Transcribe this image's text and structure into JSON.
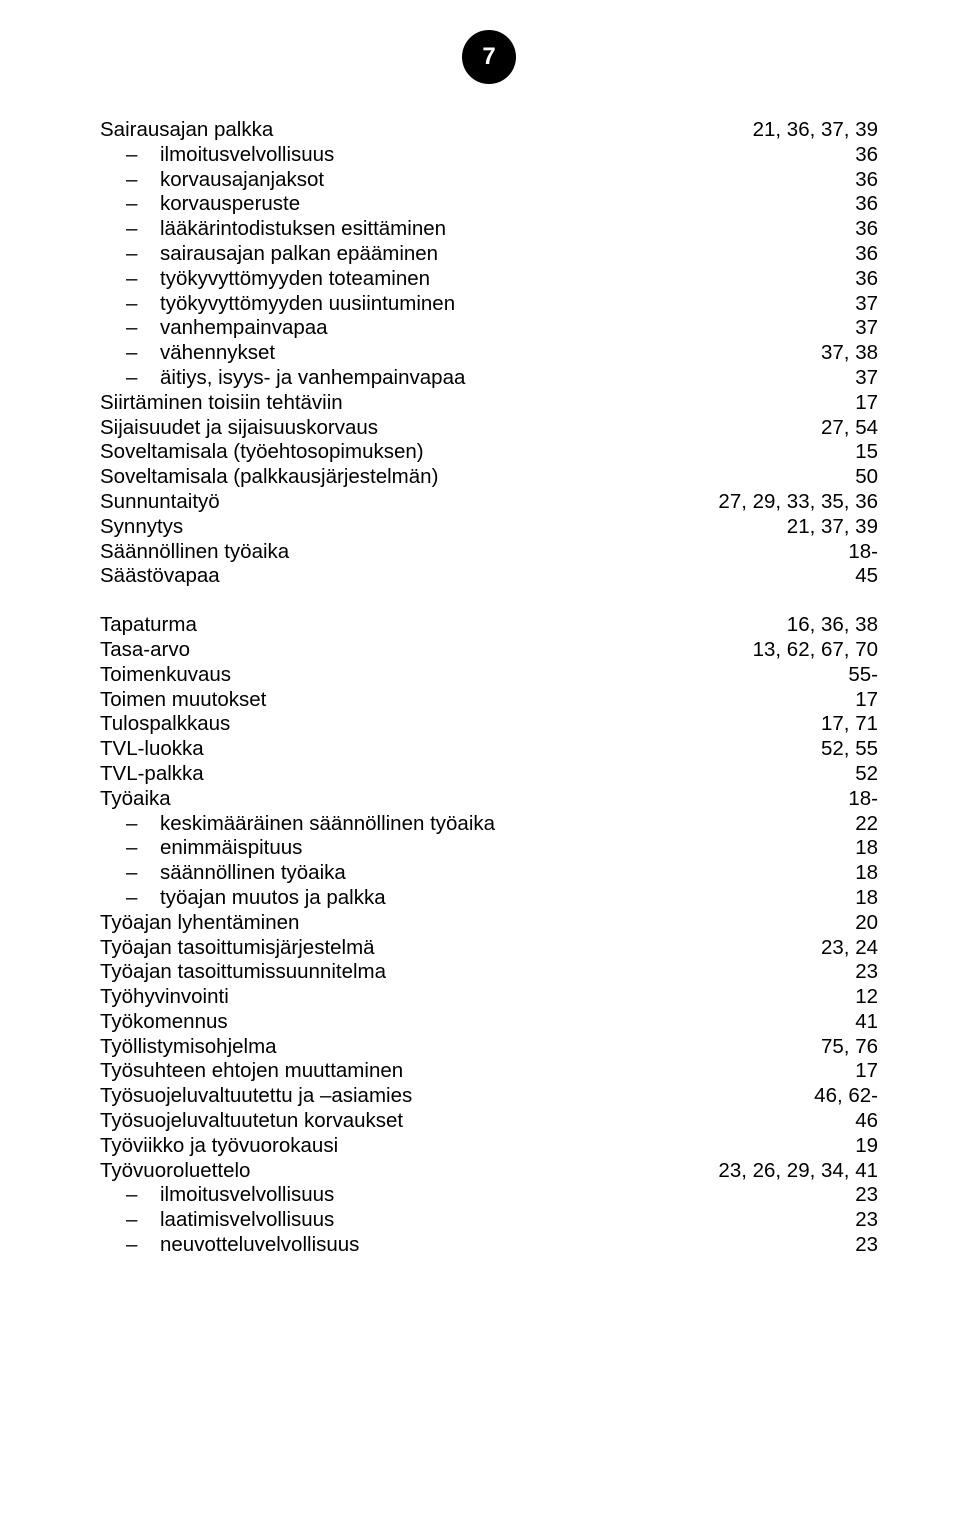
{
  "page_number": "7",
  "section1": [
    {
      "term": "Sairausajan palkka",
      "pages": "21, 36, 37, 39"
    },
    {
      "term": "ilmoitusvelvollisuus",
      "pages": "36",
      "sub": true
    },
    {
      "term": "korvausajanjaksot",
      "pages": "36",
      "sub": true
    },
    {
      "term": "korvausperuste",
      "pages": "36",
      "sub": true
    },
    {
      "term": "lääkärintodistuksen esittäminen",
      "pages": "36",
      "sub": true
    },
    {
      "term": "sairausajan palkan epääminen",
      "pages": "36",
      "sub": true
    },
    {
      "term": "työkyvyttömyyden toteaminen",
      "pages": "36",
      "sub": true
    },
    {
      "term": "työkyvyttömyyden uusiintuminen",
      "pages": "37",
      "sub": true
    },
    {
      "term": "vanhempainvapaa",
      "pages": "37",
      "sub": true
    },
    {
      "term": "vähennykset",
      "pages": "37, 38",
      "sub": true
    },
    {
      "term": "äitiys, isyys- ja vanhempainvapaa",
      "pages": "37",
      "sub": true
    },
    {
      "term": "Siirtäminen toisiin tehtäviin",
      "pages": "17"
    },
    {
      "term": "Sijaisuudet ja sijaisuuskorvaus",
      "pages": "27, 54"
    },
    {
      "term": "Soveltamisala (työehtosopimuksen)",
      "pages": "15"
    },
    {
      "term": "Soveltamisala (palkkausjärjestelmän)",
      "pages": "50"
    },
    {
      "term": "Sunnuntaityö",
      "pages": "27, 29, 33, 35, 36"
    },
    {
      "term": "Synnytys",
      "pages": "21, 37, 39"
    },
    {
      "term": "Säännöllinen työaika",
      "pages": "18-"
    },
    {
      "term": "Säästövapaa",
      "pages": "45"
    }
  ],
  "section2": [
    {
      "term": "Tapaturma",
      "pages": "16, 36, 38"
    },
    {
      "term": "Tasa-arvo",
      "pages": "13, 62, 67, 70"
    },
    {
      "term": "Toimenkuvaus",
      "pages": "55-"
    },
    {
      "term": "Toimen muutokset",
      "pages": "17"
    },
    {
      "term": "Tulospalkkaus",
      "pages": "17, 71"
    },
    {
      "term": "TVL-luokka",
      "pages": "52, 55"
    },
    {
      "term": "TVL-palkka",
      "pages": "52"
    },
    {
      "term": "Työaika",
      "pages": "18-"
    },
    {
      "term": "keskimääräinen säännöllinen työaika",
      "pages": "22",
      "sub": true
    },
    {
      "term": "enimmäispituus",
      "pages": "18",
      "sub": true
    },
    {
      "term": "säännöllinen työaika",
      "pages": "18",
      "sub": true
    },
    {
      "term": "työajan muutos ja palkka",
      "pages": "18",
      "sub": true
    },
    {
      "term": "Työajan lyhentäminen",
      "pages": "20"
    },
    {
      "term": "Työajan tasoittumisjärjestelmä",
      "pages": "23, 24"
    },
    {
      "term": "Työajan tasoittumissuunnitelma",
      "pages": "23"
    },
    {
      "term": "Työhyvinvointi",
      "pages": "12"
    },
    {
      "term": "Työkomennus",
      "pages": "41"
    },
    {
      "term": "Työllistymisohjelma",
      "pages": "75, 76"
    },
    {
      "term": "Työsuhteen ehtojen muuttaminen",
      "pages": "17"
    },
    {
      "term": "Työsuojeluvaltuutettu ja –asiamies",
      "pages": "46, 62-"
    },
    {
      "term": "Työsuojeluvaltuutetun korvaukset",
      "pages": "46"
    },
    {
      "term": "Työviikko ja työvuorokausi",
      "pages": "19"
    },
    {
      "term": "Työvuoroluettelo",
      "pages": "23, 26, 29, 34, 41"
    },
    {
      "term": "ilmoitusvelvollisuus",
      "pages": "23",
      "sub": true
    },
    {
      "term": "laatimisvelvollisuus",
      "pages": "23",
      "sub": true
    },
    {
      "term": "neuvotteluvelvollisuus",
      "pages": "23",
      "sub": true
    }
  ]
}
